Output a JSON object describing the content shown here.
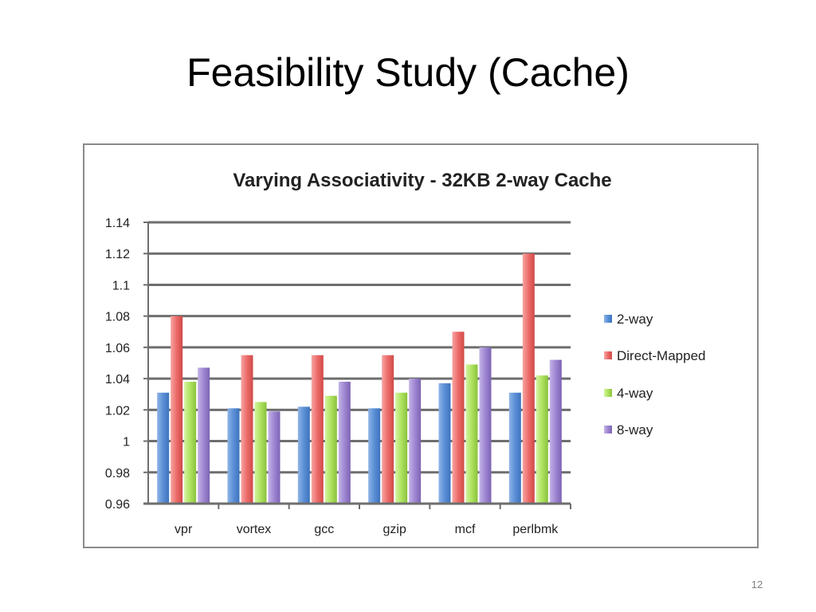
{
  "slide": {
    "title": "Feasibility Study (Cache)",
    "page_number": "12"
  },
  "colors": {
    "2-way": "#4f81bd",
    "Direct-Mapped": "#e5605e",
    "4-way": "#9bd147",
    "8-way": "#8b72bf"
  },
  "chart_data": {
    "type": "bar",
    "title": "Varying Associativity - 32KB 2-way Cache",
    "xlabel": "",
    "ylabel": "",
    "categories": [
      "vpr",
      "vortex",
      "gcc",
      "gzip",
      "mcf",
      "perlbmk"
    ],
    "series": [
      {
        "name": "2-way",
        "values": [
          1.031,
          1.021,
          1.022,
          1.021,
          1.037,
          1.031
        ]
      },
      {
        "name": "Direct-Mapped",
        "values": [
          1.08,
          1.055,
          1.055,
          1.055,
          1.07,
          1.12
        ]
      },
      {
        "name": "4-way",
        "values": [
          1.038,
          1.025,
          1.029,
          1.031,
          1.049,
          1.042
        ]
      },
      {
        "name": "8-way",
        "values": [
          1.047,
          1.019,
          1.038,
          1.04,
          1.06,
          1.052
        ]
      }
    ],
    "ylim": [
      0.96,
      1.14
    ],
    "yticks": [
      "0.96",
      "0.98",
      "1",
      "1.02",
      "1.04",
      "1.06",
      "1.08",
      "1.1",
      "1.12",
      "1.14"
    ],
    "grid": true,
    "legend_position": "right"
  }
}
